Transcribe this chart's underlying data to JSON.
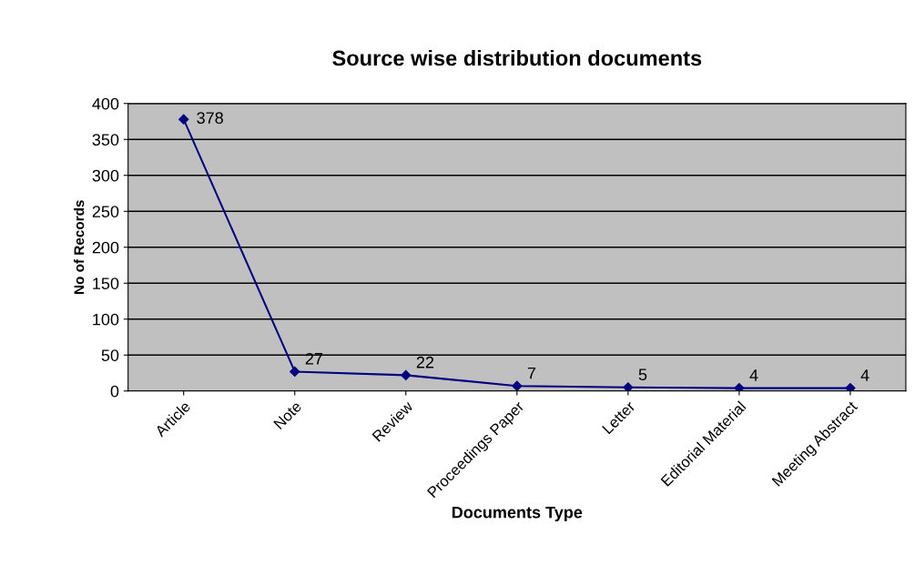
{
  "chart_data": {
    "type": "line",
    "title": "Source wise distribution documents",
    "xlabel": "Documents Type",
    "ylabel": "No of Records",
    "categories": [
      "Article",
      "Note",
      "Review",
      "Proceedings Paper",
      "Letter",
      "Editorial Material",
      "Meeting Abstract"
    ],
    "series": [
      {
        "color": "#000080",
        "values": [
          378,
          27,
          22,
          7,
          5,
          4,
          4
        ]
      }
    ],
    "ylim": [
      0,
      400
    ],
    "yticks": [
      0,
      50,
      100,
      150,
      200,
      250,
      300,
      350,
      400
    ],
    "grid": "y",
    "marker": "diamond",
    "data_labels": true
  }
}
